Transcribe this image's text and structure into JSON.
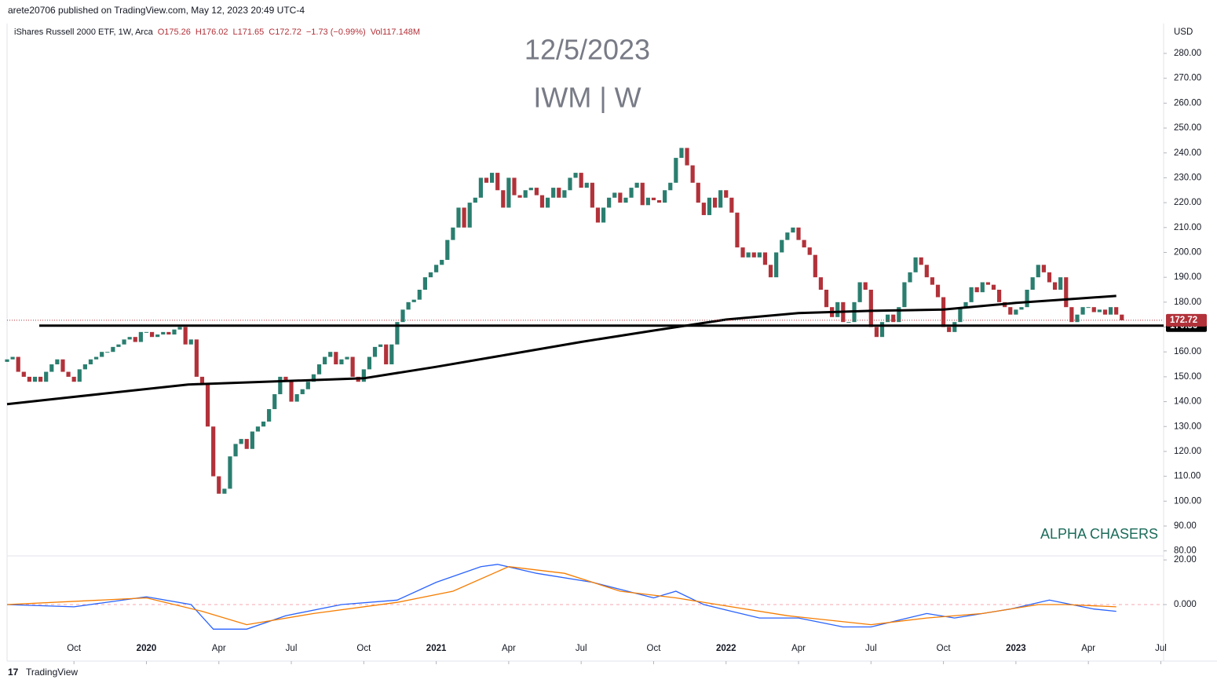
{
  "header": {
    "published": "arete20706 published on TradingView.com, May 12, 2023 20:49 UTC-4",
    "symbol": "iShares Russell 2000 ETF, 1W, Arca",
    "open": "O175.26",
    "high": "H176.02",
    "low": "L171.65",
    "close": "C172.72",
    "change": "−1.73 (−0.99%)",
    "volume": "Vol117.148M",
    "footer": "TradingView"
  },
  "chart_data": [
    {
      "type": "candlestick",
      "title": "12/5/2023",
      "subtitle": "IWM | W",
      "annotation": "ALPHA CHASERS",
      "currency": "USD",
      "xlim": [
        0,
        207.5
      ],
      "xticks": [
        {
          "value": 12,
          "label": "Oct"
        },
        {
          "value": 25,
          "label": "2020"
        },
        {
          "value": 38,
          "label": "Apr"
        },
        {
          "value": 51,
          "label": "Jul"
        },
        {
          "value": 64,
          "label": "Oct"
        },
        {
          "value": 77,
          "label": "2021"
        },
        {
          "value": 90,
          "label": "Apr"
        },
        {
          "value": 103,
          "label": "Jul"
        },
        {
          "value": 116,
          "label": "Oct"
        },
        {
          "value": 129,
          "label": "2022"
        },
        {
          "value": 142,
          "label": "Apr"
        },
        {
          "value": 155,
          "label": "Jul"
        },
        {
          "value": 168,
          "label": "Oct"
        },
        {
          "value": 181,
          "label": "2023"
        },
        {
          "value": 194,
          "label": "Apr"
        },
        {
          "value": 207,
          "label": "Jul"
        }
      ],
      "ylim": [
        78,
        292
      ],
      "yticks": [
        {
          "value": 80,
          "label": "80.00"
        },
        {
          "value": 90,
          "label": "90.00"
        },
        {
          "value": 100,
          "label": "100.00"
        },
        {
          "value": 110,
          "label": "110.00"
        },
        {
          "value": 120,
          "label": "120.00"
        },
        {
          "value": 130,
          "label": "130.00"
        },
        {
          "value": 140,
          "label": "140.00"
        },
        {
          "value": 150,
          "label": "150.00"
        },
        {
          "value": 160,
          "label": "160.00"
        },
        {
          "value": 170,
          "label": "170.00"
        },
        {
          "value": 180,
          "label": "180.00"
        },
        {
          "value": 190,
          "label": "190.00"
        },
        {
          "value": 200,
          "label": "200.00"
        },
        {
          "value": 210,
          "label": "210.00"
        },
        {
          "value": 220,
          "label": "220.00"
        },
        {
          "value": 230,
          "label": "230.00"
        },
        {
          "value": 240,
          "label": "240.00"
        },
        {
          "value": 250,
          "label": "250.00"
        },
        {
          "value": 260,
          "label": "260.00"
        },
        {
          "value": 270,
          "label": "270.00"
        },
        {
          "value": 280,
          "label": "280.00"
        }
      ],
      "candles": {
        "up_color": "#2a7e6f",
        "down_color": "#b2323a",
        "open_first": 156,
        "close": [
          157,
          158,
          152,
          150,
          148,
          150,
          148,
          152,
          155,
          157,
          152,
          150,
          148,
          153,
          155,
          157,
          158,
          160,
          160,
          162,
          163,
          165,
          166,
          164,
          168,
          168,
          166,
          167,
          168,
          167,
          169,
          170,
          163,
          165,
          150,
          147,
          130,
          110,
          103,
          105,
          118,
          123,
          125,
          121,
          128,
          130,
          132,
          137,
          143,
          150,
          148,
          140,
          143,
          145,
          148,
          151,
          155,
          158,
          160,
          155,
          157,
          158,
          150,
          148,
          153,
          158,
          162,
          163,
          155,
          163,
          172,
          177,
          180,
          181,
          185,
          190,
          192,
          195,
          197,
          205,
          210,
          218,
          210,
          220,
          222,
          230,
          228,
          232,
          225,
          218,
          230,
          223,
          222,
          225,
          226,
          223,
          218,
          222,
          226,
          222,
          225,
          230,
          232,
          226,
          228,
          218,
          212,
          218,
          222,
          224,
          220,
          222,
          226,
          228,
          219,
          222,
          221,
          220,
          225,
          228,
          238,
          242,
          235,
          228,
          220,
          215,
          222,
          218,
          225,
          222,
          216,
          202,
          198,
          200,
          198,
          200,
          195,
          190,
          200,
          205,
          208,
          210,
          205,
          202,
          199,
          190,
          185,
          178,
          174,
          180,
          172,
          172,
          180,
          188,
          185,
          170,
          166,
          172,
          175,
          172,
          178,
          188,
          192,
          198,
          195,
          190,
          187,
          182,
          170,
          168,
          172,
          178,
          180,
          186,
          184,
          188,
          187,
          185,
          180,
          178,
          175,
          177,
          178,
          185,
          190,
          195,
          192,
          188,
          185,
          190,
          178,
          172,
          175,
          178,
          178,
          176,
          177,
          175,
          178,
          175,
          172.72
        ]
      },
      "lines": [
        {
          "color": "#000000",
          "x": [
            0,
            32.5,
            64,
            77,
            90,
            103,
            116,
            129,
            142,
            155,
            168,
            181,
            199
          ],
          "values": [
            139,
            146.9,
            149.4,
            154,
            159,
            164,
            168.6,
            173,
            175.6,
            176.5,
            177,
            179.7,
            182.5
          ]
        }
      ],
      "levels": [
        {
          "value": 170.56,
          "label": "170.56",
          "color": "#000000"
        }
      ],
      "last_price": {
        "value": 172.72,
        "label": "172.72",
        "color": "#b2323a"
      }
    },
    {
      "type": "line",
      "ylim": [
        -25.3,
        21.8
      ],
      "yticks": [
        {
          "value": 20,
          "label": "20.00"
        },
        {
          "value": 0,
          "label": "0.000"
        }
      ],
      "series": [
        {
          "color": "#2962ff",
          "x": [
            0,
            12,
            25,
            33,
            37,
            43,
            50,
            60,
            70,
            77,
            85,
            88,
            95,
            105,
            116,
            120,
            125,
            130,
            135,
            142,
            150,
            155,
            160,
            165,
            170,
            180,
            187,
            195,
            199
          ],
          "values": [
            0,
            -1,
            3.5,
            0,
            -11,
            -11,
            -5,
            0,
            2,
            10,
            17,
            18,
            14,
            10,
            3,
            6,
            0,
            -3,
            -6,
            -6,
            -10,
            -10,
            -7,
            -4,
            -6,
            -2,
            2,
            -2,
            -3
          ]
        },
        {
          "color": "#f57c00",
          "x": [
            0,
            25,
            35,
            43,
            55,
            70,
            80,
            90,
            100,
            110,
            120,
            130,
            140,
            155,
            165,
            175,
            185,
            190,
            199
          ],
          "values": [
            0,
            3,
            -3,
            -9,
            -4,
            1,
            6,
            17,
            14,
            6,
            3,
            -1,
            -5,
            -9,
            -6,
            -4,
            0,
            0,
            -1
          ]
        }
      ]
    }
  ]
}
